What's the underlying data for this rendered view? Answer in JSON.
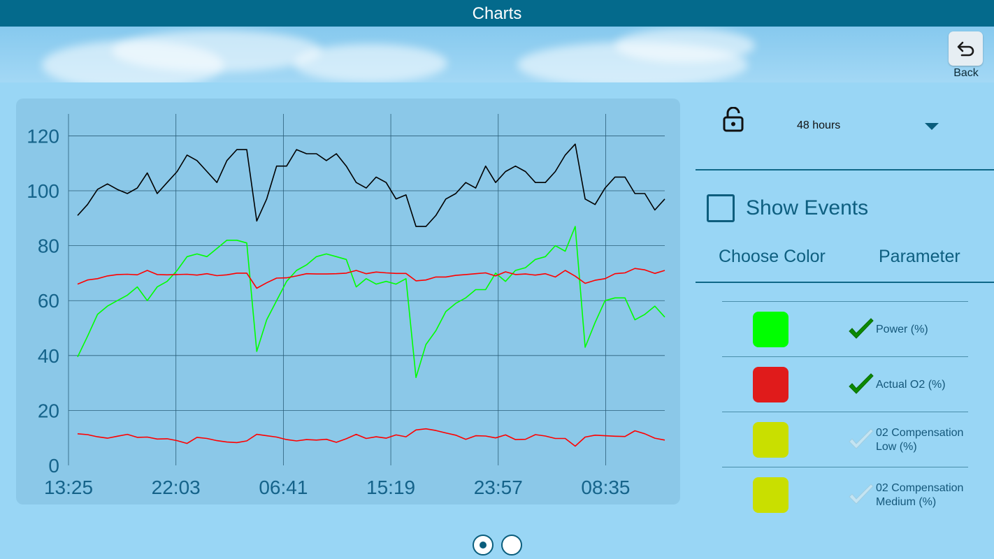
{
  "header": {
    "title": "Charts"
  },
  "nav": {
    "back_label": "Back"
  },
  "controls": {
    "time_range": "48 hours",
    "show_events_label": "Show Events",
    "show_events_checked": false,
    "col_color": "Choose Color",
    "col_parameter": "Parameter"
  },
  "parameters": [
    {
      "label": "Power  (%)",
      "color": "#00ff00",
      "checked": true
    },
    {
      "label": "Actual O2  (%)",
      "color": "#e01b1b",
      "checked": true
    },
    {
      "label": "02 Compensation Low (%)",
      "color": "#c9df00",
      "checked": false
    },
    {
      "label": "02 Compensation Medium (%)",
      "color": "#c9df00",
      "checked": false
    }
  ],
  "pager": {
    "pages": 2,
    "current": 1
  },
  "chart_data": {
    "type": "line",
    "ylim": [
      0,
      128
    ],
    "yticks": [
      0,
      20,
      40,
      60,
      80,
      100,
      120
    ],
    "x_tick_labels": [
      "13:25",
      "22:03",
      "06:41",
      "15:19",
      "23:57",
      "08:35"
    ],
    "grid": true,
    "series": [
      {
        "color": "#000000",
        "values": [
          91,
          95,
          100.5,
          102.5,
          100.5,
          99,
          101,
          106.5,
          99,
          103,
          107,
          113,
          111,
          107,
          103,
          111,
          115,
          115,
          89,
          97,
          109,
          109,
          115,
          113.5,
          113.5,
          111,
          113.5,
          109,
          103,
          101,
          105,
          103,
          97,
          98.5,
          87,
          87,
          91,
          97,
          99,
          103,
          101,
          109,
          103,
          107,
          109,
          107,
          103,
          103,
          107,
          113,
          117,
          97,
          95,
          101,
          105,
          105,
          99,
          99,
          93,
          97
        ]
      },
      {
        "color": "#00ff00",
        "values": [
          39.5,
          47,
          55,
          58,
          60,
          62,
          65,
          60,
          65,
          67,
          71,
          76,
          77,
          76,
          79,
          82,
          82,
          81,
          41.5,
          53,
          60,
          67,
          71,
          73,
          76,
          77,
          76,
          75,
          65,
          68,
          66,
          67,
          66,
          68,
          32,
          44,
          49,
          56,
          59,
          61,
          64,
          64,
          70,
          67,
          71,
          72,
          75,
          76,
          80,
          78,
          87,
          43,
          52,
          60,
          61,
          61,
          53,
          55,
          58,
          54
        ]
      },
      {
        "color": "#ff0000",
        "values": [
          66,
          67.5,
          68,
          69,
          69.5,
          69.6,
          69.4,
          71,
          69.5,
          69.4,
          69.5,
          69.6,
          69.3,
          69.8,
          69.1,
          69.4,
          70,
          70,
          64.5,
          66.5,
          68.2,
          68.3,
          69,
          69.8,
          69.7,
          69.7,
          69.8,
          70,
          71,
          69.8,
          70.4,
          70.1,
          69.9,
          69.9,
          67.2,
          67.5,
          68.6,
          68.6,
          69.2,
          69.5,
          69.8,
          70.1,
          69,
          70.5,
          69.5,
          69.7,
          69.3,
          69.8,
          68.6,
          71,
          68.9,
          66.3,
          67.4,
          68,
          69.8,
          70.1,
          71.7,
          71.2,
          69.9,
          71
        ]
      },
      {
        "color": "#ff0000",
        "values": [
          11.5,
          11.2,
          10.4,
          9.9,
          10.6,
          11.3,
          10.2,
          10.3,
          9.6,
          9.7,
          9,
          8,
          10.2,
          9.8,
          9,
          8.5,
          8.3,
          8.9,
          11.3,
          10.8,
          10.3,
          9.4,
          8.9,
          9.4,
          9.2,
          9.5,
          8.4,
          9.7,
          11.3,
          9.8,
          10.4,
          9.9,
          11.1,
          10.4,
          12.9,
          13.3,
          12.7,
          11.8,
          11,
          9.5,
          10.8,
          10.7,
          10,
          11.1,
          9.4,
          9.5,
          11.2,
          10.7,
          9.8,
          9.8,
          7,
          10.3,
          11,
          10.8,
          10.6,
          10.5,
          12.6,
          11.5,
          9.9,
          9.2
        ]
      }
    ]
  }
}
